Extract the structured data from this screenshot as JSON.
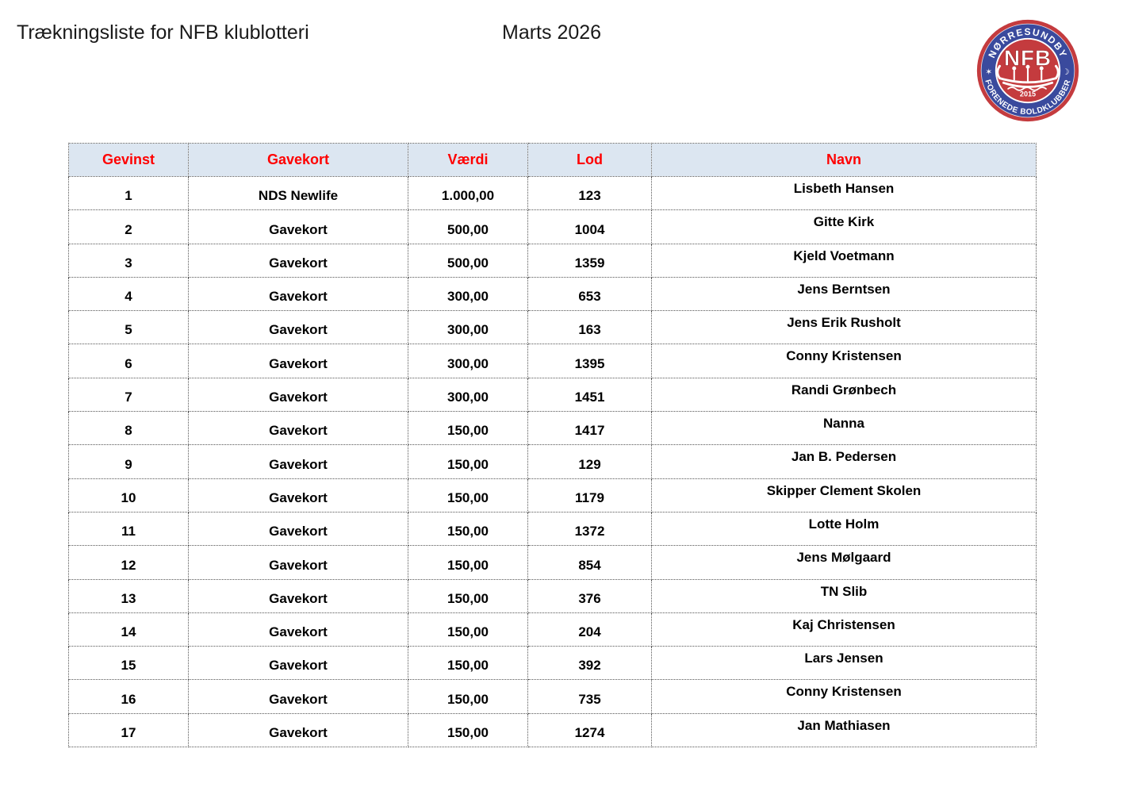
{
  "page": {
    "title": "Trækningsliste for NFB klublotteri",
    "period": "Marts 2026"
  },
  "logo": {
    "top_text": "NØRRESUNDBY",
    "bottom_text": "FORENEDE BOLDKLUBBER",
    "center_text": "NFB",
    "year": "2015",
    "star_icon": "✶",
    "moon_icon": "☽",
    "red": "#c43b3e",
    "blue": "#3a4a9d",
    "white": "#ffffff"
  },
  "table": {
    "header_bg": "#dce6f1",
    "header_text_color": "#ff0000",
    "headers": [
      "Gevinst",
      "Gavekort",
      "Værdi",
      "Lod",
      "Navn"
    ],
    "rows": [
      [
        "1",
        "NDS Newlife",
        "1.000,00",
        "123",
        "Lisbeth Hansen"
      ],
      [
        "2",
        "Gavekort",
        "500,00",
        "1004",
        "Gitte Kirk"
      ],
      [
        "3",
        "Gavekort",
        "500,00",
        "1359",
        "Kjeld Voetmann"
      ],
      [
        "4",
        "Gavekort",
        "300,00",
        "653",
        "Jens Berntsen"
      ],
      [
        "5",
        "Gavekort",
        "300,00",
        "163",
        "Jens Erik Rusholt"
      ],
      [
        "6",
        "Gavekort",
        "300,00",
        "1395",
        "Conny Kristensen"
      ],
      [
        "7",
        "Gavekort",
        "300,00",
        "1451",
        "Randi Grønbech"
      ],
      [
        "8",
        "Gavekort",
        "150,00",
        "1417",
        "Nanna"
      ],
      [
        "9",
        "Gavekort",
        "150,00",
        "129",
        "Jan B. Pedersen"
      ],
      [
        "10",
        "Gavekort",
        "150,00",
        "1179",
        "Skipper Clement Skolen"
      ],
      [
        "11",
        "Gavekort",
        "150,00",
        "1372",
        "Lotte Holm"
      ],
      [
        "12",
        "Gavekort",
        "150,00",
        "854",
        "Jens Mølgaard"
      ],
      [
        "13",
        "Gavekort",
        "150,00",
        "376",
        "TN Slib"
      ],
      [
        "14",
        "Gavekort",
        "150,00",
        "204",
        "Kaj Christensen"
      ],
      [
        "15",
        "Gavekort",
        "150,00",
        "392",
        "Lars Jensen"
      ],
      [
        "16",
        "Gavekort",
        "150,00",
        "735",
        "Conny Kristensen"
      ],
      [
        "17",
        "Gavekort",
        "150,00",
        "1274",
        "Jan Mathiasen"
      ]
    ]
  }
}
